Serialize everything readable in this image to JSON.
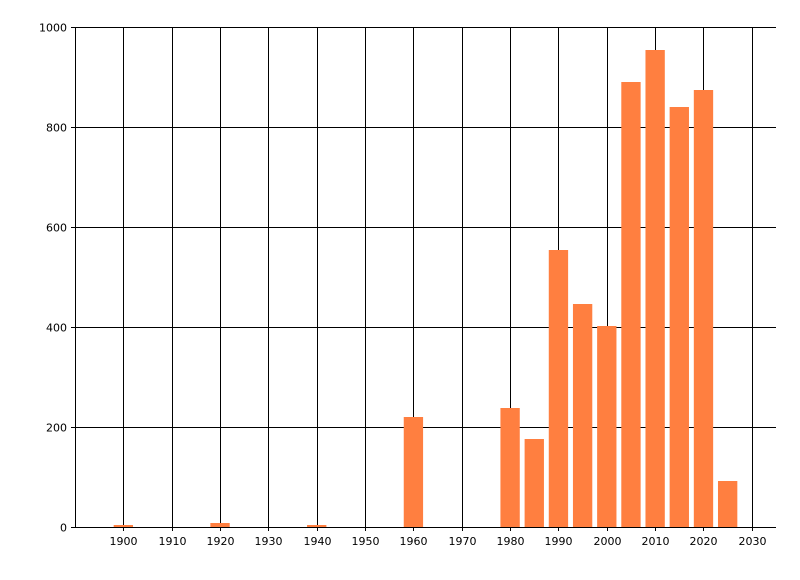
{
  "chart_data": {
    "type": "bar",
    "title": "",
    "xlabel": "",
    "ylabel": "",
    "x": [
      1900,
      1920,
      1940,
      1960,
      1980,
      1985,
      1990,
      1995,
      2000,
      2005,
      2010,
      2015,
      2020,
      2025
    ],
    "values": [
      4,
      8,
      4,
      220,
      238,
      176,
      554,
      446,
      402,
      890,
      954,
      840,
      874,
      92
    ],
    "bar_width_years": 4,
    "xlim": [
      1890,
      2035
    ],
    "ylim": [
      0,
      1000
    ],
    "xticks": [
      1900,
      1910,
      1920,
      1930,
      1940,
      1950,
      1960,
      1970,
      1980,
      1990,
      2000,
      2010,
      2020,
      2030
    ],
    "yticks": [
      0,
      200,
      400,
      600,
      800,
      1000
    ],
    "grid": true,
    "bar_color": "#FF7F40",
    "grid_color": "#000000"
  }
}
